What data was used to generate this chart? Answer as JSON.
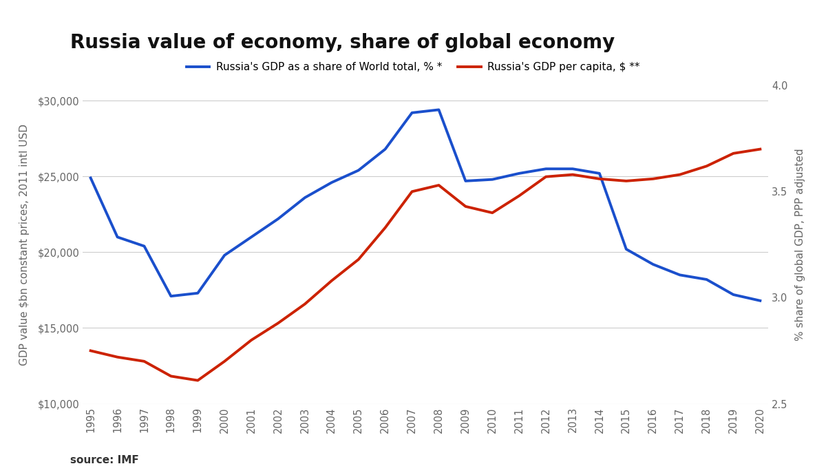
{
  "title": "Russia value of economy, share of global economy",
  "years": [
    1995,
    1996,
    1997,
    1998,
    1999,
    2000,
    2001,
    2002,
    2003,
    2004,
    2005,
    2006,
    2007,
    2008,
    2009,
    2010,
    2011,
    2012,
    2013,
    2014,
    2015,
    2016,
    2017,
    2018,
    2019,
    2020
  ],
  "gdp_per_capita": [
    24900,
    21000,
    20400,
    17100,
    17300,
    19800,
    21000,
    22200,
    23600,
    24600,
    25400,
    26800,
    29200,
    29400,
    24700,
    24800,
    25200,
    25500,
    25500,
    25200,
    20200,
    19200,
    18500,
    18200,
    17200,
    16800
  ],
  "gdp_share_pct": [
    2.75,
    2.72,
    2.7,
    2.63,
    2.61,
    2.7,
    2.8,
    2.88,
    2.97,
    3.08,
    3.18,
    3.33,
    3.5,
    3.53,
    3.43,
    3.4,
    3.48,
    3.57,
    3.58,
    3.56,
    3.55,
    3.56,
    3.58,
    3.62,
    3.68,
    3.7
  ],
  "blue_color": "#1a4fcc",
  "red_color": "#cc2200",
  "blue_label": "Russia's GDP as a share of World total, % *",
  "red_label": "Russia's GDP per capita, $ **",
  "left_ylabel": "GDP value $bn constant prices, 2011 intl USD",
  "right_ylabel": "% share of global GDP, PPP adjusted",
  "source_text": "source: IMF",
  "ylim_left": [
    10000,
    31000
  ],
  "ylim_right": [
    2.5,
    4.0
  ],
  "yticks_left": [
    10000,
    15000,
    20000,
    25000,
    30000
  ],
  "yticks_right": [
    2.5,
    3.0,
    3.5,
    4.0
  ],
  "background_color": "#ffffff",
  "grid_color": "#cccccc",
  "title_fontsize": 20,
  "label_fontsize": 11,
  "tick_fontsize": 10.5,
  "legend_fontsize": 11
}
